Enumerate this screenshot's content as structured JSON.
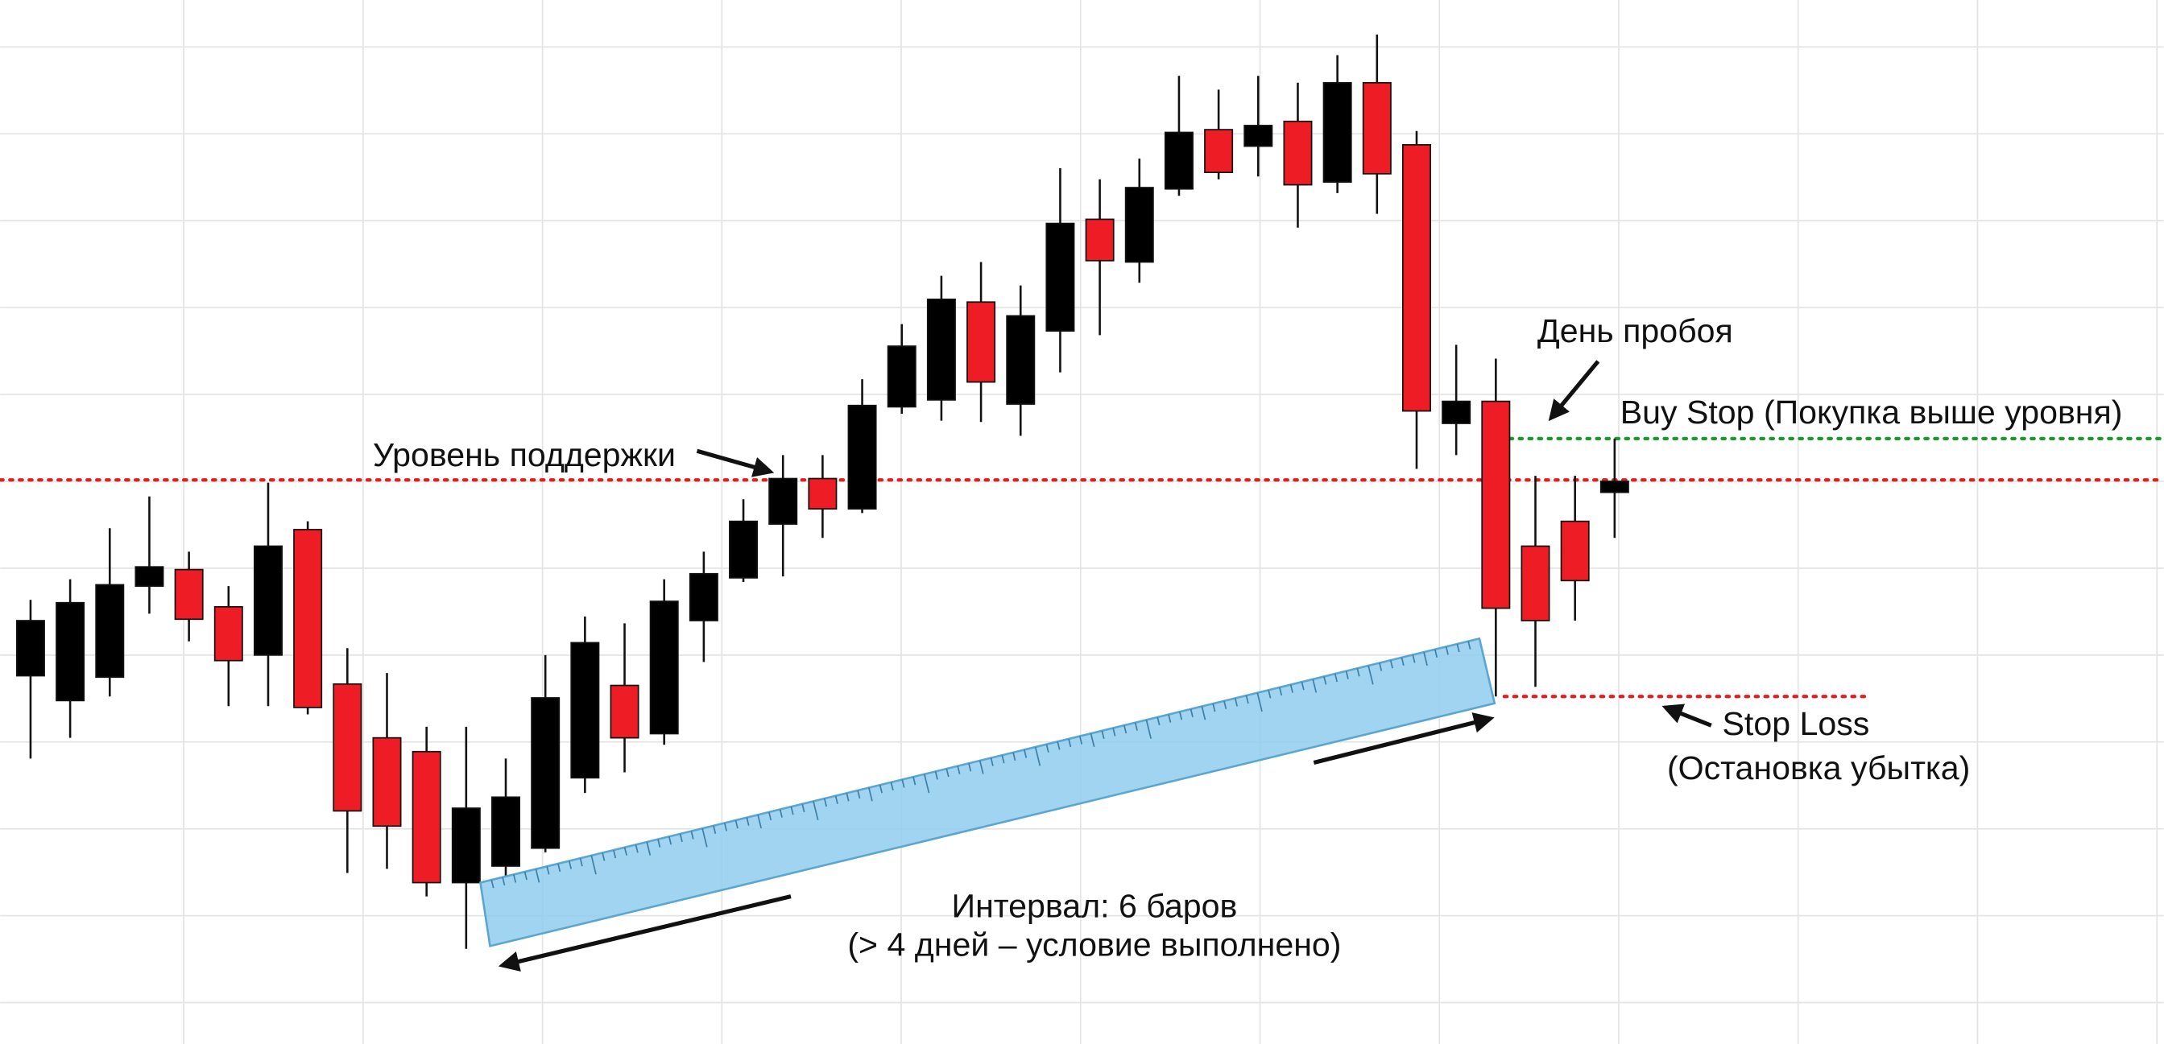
{
  "chart_data": {
    "type": "candlestick",
    "open": [
      267,
      249,
      266,
      332,
      344,
      317,
      282,
      373,
      261,
      222,
      212,
      117,
      129,
      142,
      193,
      260,
      225,
      307,
      338,
      377,
      410,
      388,
      462,
      467,
      538,
      464,
      517,
      598,
      567,
      620,
      663,
      651,
      669,
      625,
      697,
      652,
      450,
      466,
      361,
      379,
      400
    ],
    "high": [
      322,
      337,
      374,
      397,
      357,
      332,
      407,
      379,
      287,
      269,
      230,
      230,
      207,
      282,
      310,
      305,
      337,
      357,
      395,
      427,
      427,
      482,
      522,
      557,
      567,
      550,
      635,
      627,
      642,
      702,
      692,
      702,
      697,
      717,
      732,
      662,
      507,
      497,
      412,
      412,
      439
    ],
    "low": [
      207,
      222,
      252,
      312,
      292,
      245,
      245,
      239,
      124,
      127,
      107,
      69,
      122,
      139,
      182,
      197,
      217,
      277,
      335,
      339,
      367,
      385,
      457,
      452,
      451,
      441,
      487,
      514,
      552,
      615,
      627,
      629,
      592,
      617,
      602,
      417,
      427,
      252,
      259,
      307,
      367
    ],
    "close": [
      307,
      320,
      333,
      346,
      308,
      278,
      361,
      244,
      169,
      158,
      117,
      171,
      179,
      251,
      291,
      222,
      321,
      341,
      379,
      410,
      388,
      463,
      506,
      540,
      480,
      528,
      595,
      568,
      621,
      661,
      632,
      666,
      623,
      697,
      631,
      459,
      466,
      316,
      307,
      336,
      408
    ],
    "up_color": "#000000",
    "down_color": "#ee1c25",
    "ylim": [
      0,
      757
    ],
    "grid": true,
    "levels": [
      {
        "value": 409,
        "color": "#e02020"
      },
      {
        "value": 439,
        "color": "#1a9a2a"
      },
      {
        "value": 252,
        "color": "#e02020"
      }
    ],
    "annotations": [
      "Уровень поддержки",
      "День пробоя",
      "Buy Stop (Покупка выше уровня)",
      "Stop Loss",
      "(Остановка убытка)",
      "Интервал: 6 баров",
      "(> 4 дней – условие выполнено)"
    ]
  }
}
